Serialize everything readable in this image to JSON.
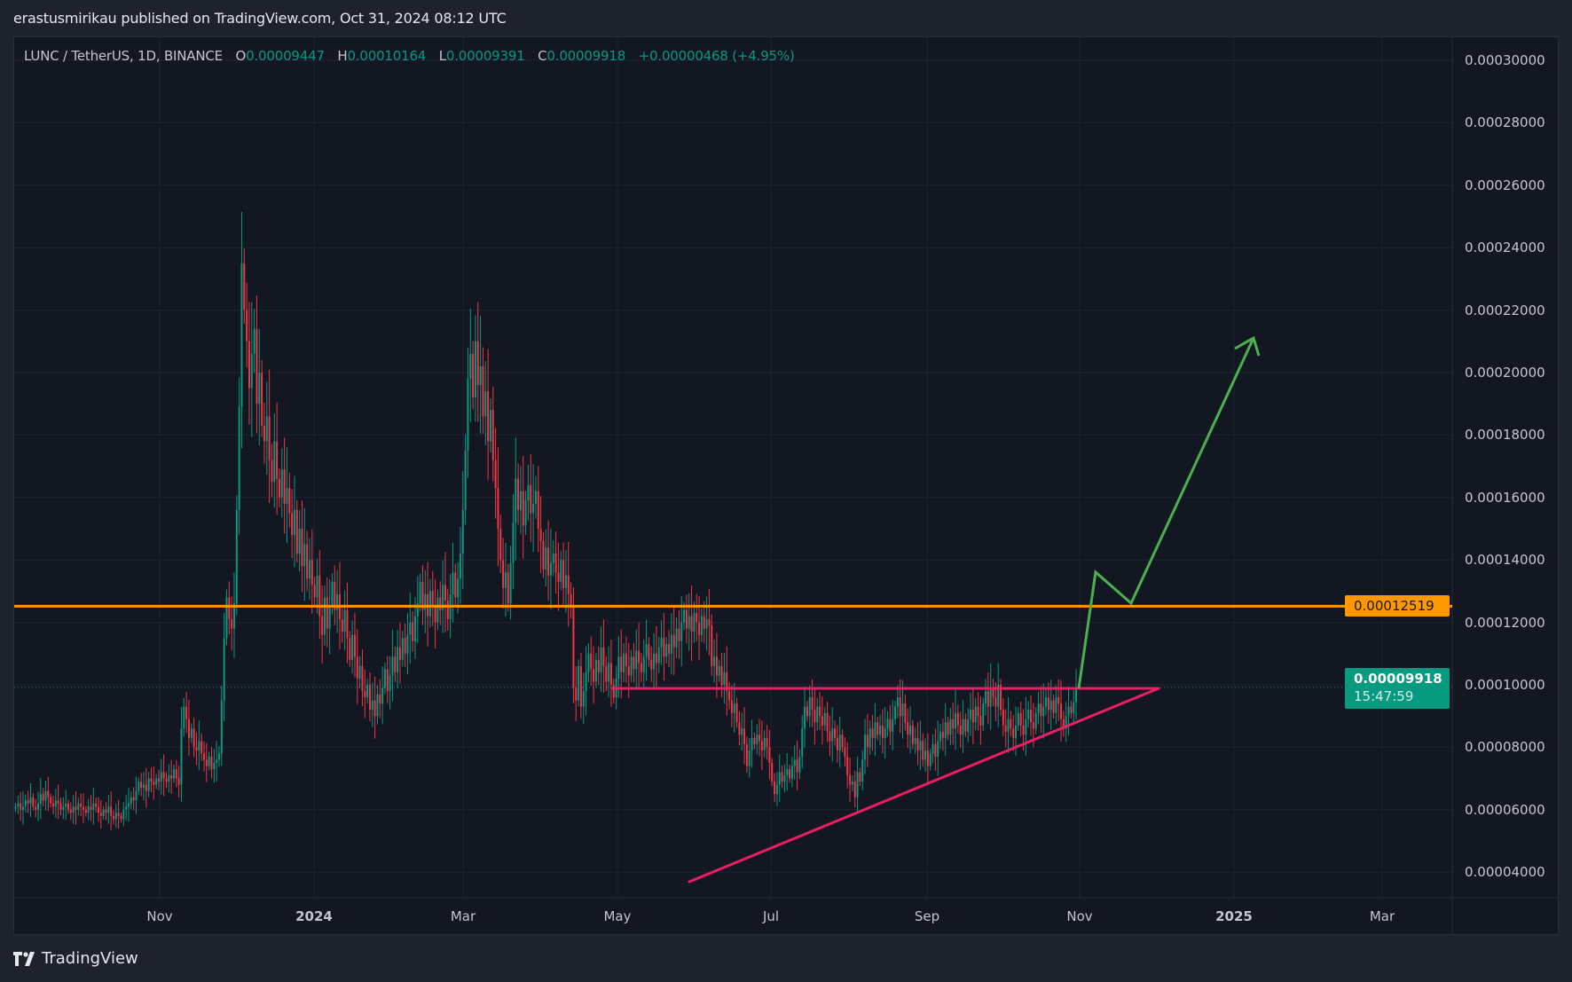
{
  "header": {
    "published": "erastusmirikau published on TradingView.com, Oct 31, 2024 08:12 UTC"
  },
  "legend": {
    "symbol": "LUNC / TetherUS, 1D, BINANCE",
    "open_label": "O",
    "open": "0.00009447",
    "high_label": "H",
    "high": "0.00010164",
    "low_label": "L",
    "low": "0.00009391",
    "close_label": "C",
    "close": "0.00009918",
    "change": "+0.00000468 (+4.95%)"
  },
  "price_tags": {
    "level": "0.00012519",
    "last": "0.00009918",
    "countdown": "15:47:59"
  },
  "brand": {
    "name": "TradingView",
    "icon": "tradingview-logo-icon"
  },
  "colors": {
    "up": "#089981",
    "down": "#f23645",
    "level": "#ff9800",
    "pattern": "#e91e63",
    "projection": "#4caf50",
    "background": "#131722"
  },
  "chart_data": {
    "type": "candlestick",
    "title": "",
    "symbol": "LUNC / TetherUS",
    "interval": "1D",
    "ylim": [
      3.3e-05,
      0.000302
    ],
    "grid": true,
    "y_ticks": [
      "0.00004000",
      "0.00006000",
      "0.00008000",
      "0.00010000",
      "0.00012000",
      "0.00014000",
      "0.00016000",
      "0.00018000",
      "0.00020000",
      "0.00022000",
      "0.00024000",
      "0.00026000",
      "0.00028000",
      "0.00030000"
    ],
    "x_ticks": [
      {
        "label": "Nov",
        "bold": false
      },
      {
        "label": "2024",
        "bold": true
      },
      {
        "label": "Mar",
        "bold": false
      },
      {
        "label": "May",
        "bold": false
      },
      {
        "label": "Jul",
        "bold": false
      },
      {
        "label": "Sep",
        "bold": false
      },
      {
        "label": "Nov",
        "bold": false
      },
      {
        "label": "2025",
        "bold": true
      },
      {
        "label": "Mar",
        "bold": false
      }
    ],
    "horizontal_level": 0.00012519,
    "last_price": 9.918e-05,
    "closes": [
      6.1e-05,
      6.2e-05,
      6e-05,
      6.1e-05,
      6.3e-05,
      6.2e-05,
      6.4e-05,
      6.1e-05,
      6e-05,
      6.2e-05,
      6.5e-05,
      6.3e-05,
      6.6e-05,
      6.4e-05,
      6.2e-05,
      6.1e-05,
      6.3e-05,
      6.2e-05,
      6e-05,
      6.1e-05,
      6.2e-05,
      6e-05,
      5.9e-05,
      6.1e-05,
      6e-05,
      6.2e-05,
      6.1e-05,
      6e-05,
      5.9e-05,
      6.1e-05,
      6e-05,
      6.2e-05,
      6.1e-05,
      5.9e-05,
      5.8e-05,
      6e-05,
      5.9e-05,
      6.1e-05,
      5.8e-05,
      5.7e-05,
      5.9e-05,
      5.8e-05,
      5.7e-05,
      6e-05,
      6.1e-05,
      6.2e-05,
      6.4e-05,
      6.3e-05,
      6.6e-05,
      6.9e-05,
      6.7e-05,
      6.8e-05,
      6.6e-05,
      7e-05,
      6.9e-05,
      6.8e-05,
      7e-05,
      6.9e-05,
      7.2e-05,
      7e-05,
      6.9e-05,
      7.1e-05,
      7e-05,
      7.3e-05,
      7e-05,
      6.8e-05,
      8.6e-05,
      9.3e-05,
      8.9e-05,
      8.3e-05,
      8.6e-05,
      8e-05,
      7.9e-05,
      8.2e-05,
      7.8e-05,
      7.6e-05,
      7.4e-05,
      7.7e-05,
      7.3e-05,
      7.5e-05,
      7.6e-05,
      7.8e-05,
      9.5e-05,
      0.000115,
      0.000128,
      0.000121,
      0.000118,
      0.000126,
      0.000156,
      0.000189,
      0.000235,
      0.00022,
      0.00021,
      0.000195,
      0.000206,
      0.000214,
      0.00019,
      0.0002,
      0.000183,
      0.000178,
      0.000186,
      0.000172,
      0.000165,
      0.000178,
      0.000166,
      0.00016,
      0.000169,
      0.000158,
      0.000163,
      0.000155,
      0.000148,
      0.000156,
      0.000142,
      0.00015,
      0.000138,
      0.000145,
      0.000134,
      0.00014,
      0.000132,
      0.000128,
      0.000135,
      0.000122,
      0.000116,
      0.000128,
      0.000118,
      0.000125,
      0.000133,
      0.000124,
      0.000129,
      0.000121,
      0.000117,
      0.000124,
      0.000115,
      0.000108,
      0.000116,
      0.000109,
      0.000102,
      0.000106,
      9.8e-05,
      9.6e-05,
      0.0001,
      9.2e-05,
      9.5e-05,
      9e-05,
      9.7e-05,
      9.4e-05,
      9.9e-05,
      0.000105,
      9.8e-05,
      0.000103,
      0.000109,
      0.000104,
      0.000112,
      0.000108,
      0.000115,
      0.00011,
      0.000116,
      0.00012,
      0.000114,
      0.000122,
      0.000126,
      0.000133,
      0.000124,
      0.000129,
      0.000122,
      0.00013,
      0.000125,
      0.00012,
      0.000128,
      0.000124,
      0.000132,
      0.000127,
      0.000121,
      0.000129,
      0.000136,
      0.000128,
      0.000134,
      0.000142,
      0.000156,
      0.000175,
      0.000198,
      0.000206,
      0.000192,
      0.00021,
      0.000196,
      0.000202,
      0.000186,
      0.000194,
      0.000178,
      0.000188,
      0.000172,
      0.000163,
      0.00015,
      0.00014,
      0.000131,
      0.000136,
      0.000126,
      0.000139,
      0.000152,
      0.000166,
      0.000156,
      0.000162,
      0.000151,
      0.000159,
      0.000164,
      0.000155,
      0.000158,
      0.000162,
      0.00015,
      0.000146,
      0.000137,
      0.000144,
      0.000135,
      0.000139,
      0.000142,
      0.000136,
      0.000133,
      0.00014,
      0.000131,
      0.000135,
      0.000129,
      0.000125,
      9.9e-05,
      9.5e-05,
      0.000106,
      9.3e-05,
      9.8e-05,
      0.000104,
      0.00011,
      0.000105,
      0.000101,
      0.000108,
      0.000104,
      0.000112,
      0.000106,
      0.000101,
      0.000107,
      0.0001,
      9.6e-05,
      0.000102,
      0.000109,
      0.000104,
      0.00011,
      0.000106,
      0.000103,
      0.000109,
      0.000105,
      0.000111,
      0.000107,
      0.000104,
      0.000109,
      0.000113,
      0.000108,
      0.000105,
      0.00011,
      0.000107,
      0.000112,
      0.000115,
      0.000109,
      0.000113,
      0.00011,
      0.000116,
      0.000112,
      0.000118,
      0.000114,
      0.00012,
      0.000124,
      0.000118,
      0.000122,
      0.000117,
      0.000123,
      0.00012,
      0.000116,
      0.000122,
      0.000118,
      0.000121,
      0.000119,
      0.000106,
      0.000109,
      0.000103,
      0.000106,
      0.0001,
      0.000104,
      9.8e-05,
      9.5e-05,
      9.1e-05,
      9.4e-05,
      8.8e-05,
      8.4e-05,
      8.6e-05,
      8.1e-05,
      7.4e-05,
      7.9e-05,
      8.3e-05,
      8.1e-05,
      8.4e-05,
      8.2e-05,
      7.9e-05,
      8.3e-05,
      8e-05,
      7.5e-05,
      6.9e-05,
      6.5e-05,
      6.8e-05,
      7.2e-05,
      6.9e-05,
      7.1e-05,
      7.3e-05,
      7e-05,
      7.4e-05,
      7.6e-05,
      7.2e-05,
      7.7e-05,
      8.6e-05,
      9.3e-05,
      9e-05,
      9.6e-05,
      9.2e-05,
      8.8e-05,
      9.3e-05,
      9e-05,
      8.7e-05,
      9.1e-05,
      8.5e-05,
      8.2e-05,
      8.6e-05,
      8.3e-05,
      7.9e-05,
      8.4e-05,
      8e-05,
      7.7e-05,
      7.1e-05,
      6.8e-05,
      6.9e-05,
      6.4e-05,
      7.2e-05,
      6.9e-05,
      7.6e-05,
      8.4e-05,
      8e-05,
      8.6e-05,
      8.3e-05,
      8.8e-05,
      8.4e-05,
      8.7e-05,
      8.3e-05,
      8.6e-05,
      8.9e-05,
      8.5e-05,
      8.9e-05,
      9.3e-05,
      9.6e-05,
      9e-05,
      9.4e-05,
      8.8e-05,
      8.4e-05,
      8.7e-05,
      8.1e-05,
      8.3e-05,
      7.9e-05,
      8.2e-05,
      7.6e-05,
      7.9e-05,
      7.4e-05,
      7.8e-05,
      8.1e-05,
      7.7e-05,
      8.2e-05,
      8.5e-05,
      8.3e-05,
      8.8e-05,
      8.4e-05,
      8.9e-05,
      8.6e-05,
      9.1e-05,
      8.7e-05,
      8.4e-05,
      8.9e-05,
      8.5e-05,
      8.9e-05,
      9.2e-05,
      8.8e-05,
      9.3e-05,
      9e-05,
      8.7e-05,
      9.4e-05,
      9.8e-05,
      9.3e-05,
      9.9e-05,
      9.6e-05,
      9.3e-05,
      0.0001,
      9.2e-05,
      8.7e-05,
      8.5e-05,
      8.9e-05,
      8.6e-05,
      8.3e-05,
      8.7e-05,
      9.1e-05,
      8.7e-05,
      8.4e-05,
      8.9e-05,
      9.2e-05,
      8.8e-05,
      8.6e-05,
      9.1e-05,
      9.4e-05,
      9e-05,
      9.3e-05,
      9.6e-05,
      9.2e-05,
      9.5e-05,
      9.1e-05,
      9.6e-05,
      9.4e-05,
      8.9e-05,
      8.6e-05,
      9e-05,
      9.3e-05,
      9.1e-05,
      9.45e-05,
      9.918e-05
    ]
  }
}
